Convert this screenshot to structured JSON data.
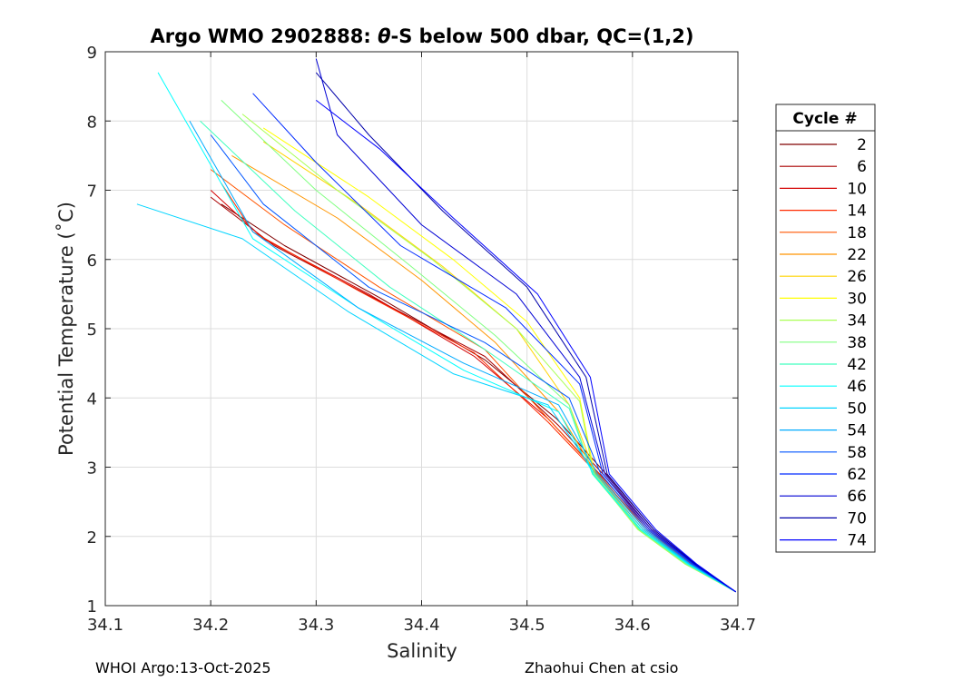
{
  "chart_data": {
    "type": "line",
    "title_prefix": "Argo WMO 2902888: ",
    "title_symbol": "θ",
    "title_suffix": "-S below 500 dbar,  QC=(1,2)",
    "xlabel": "Salinity",
    "ylabel": "Potential Temperature (˚C)",
    "xlim": [
      34.1,
      34.7
    ],
    "ylim": [
      1,
      9
    ],
    "xticks": [
      "34.1",
      "34.2",
      "34.3",
      "34.4",
      "34.5",
      "34.6",
      "34.7"
    ],
    "yticks": [
      "1",
      "2",
      "3",
      "4",
      "5",
      "6",
      "7",
      "8",
      "9"
    ],
    "grid": true,
    "legend": {
      "title": "Cycle #",
      "position": "right",
      "entries": [
        {
          "label": "2",
          "color": "#800000"
        },
        {
          "label": "6",
          "color": "#aa0000"
        },
        {
          "label": "10",
          "color": "#d40000"
        },
        {
          "label": "14",
          "color": "#ff2b00"
        },
        {
          "label": "18",
          "color": "#ff5500"
        },
        {
          "label": "22",
          "color": "#ff9500"
        },
        {
          "label": "26",
          "color": "#ffd400"
        },
        {
          "label": "30",
          "color": "#ffff00"
        },
        {
          "label": "34",
          "color": "#aaff55"
        },
        {
          "label": "38",
          "color": "#80ff80"
        },
        {
          "label": "42",
          "color": "#40ffbf"
        },
        {
          "label": "46",
          "color": "#00ffff"
        },
        {
          "label": "50",
          "color": "#00d4ff"
        },
        {
          "label": "54",
          "color": "#00aaff"
        },
        {
          "label": "58",
          "color": "#0055ff"
        },
        {
          "label": "62",
          "color": "#002bff"
        },
        {
          "label": "66",
          "color": "#0000d4"
        },
        {
          "label": "70",
          "color": "#0000aa"
        },
        {
          "label": "74",
          "color": "#0000ff"
        }
      ]
    },
    "series": [
      {
        "name": "2",
        "color": "#800000",
        "s": [
          34.698,
          34.66,
          34.62,
          34.578,
          34.528,
          34.46,
          34.36,
          34.27,
          34.21
        ],
        "t": [
          1.2,
          1.6,
          2.1,
          2.85,
          3.7,
          4.55,
          5.45,
          6.2,
          6.8
        ]
      },
      {
        "name": "6",
        "color": "#aa0000",
        "s": [
          34.698,
          34.658,
          34.618,
          34.575,
          34.53,
          34.46,
          34.36,
          34.26,
          34.2
        ],
        "t": [
          1.2,
          1.6,
          2.1,
          2.85,
          3.6,
          4.6,
          5.4,
          6.2,
          6.9
        ]
      },
      {
        "name": "10",
        "color": "#d40000",
        "s": [
          34.698,
          34.656,
          34.616,
          34.572,
          34.52,
          34.45,
          34.35,
          34.25,
          34.2
        ],
        "t": [
          1.2,
          1.6,
          2.1,
          2.85,
          3.7,
          4.6,
          5.5,
          6.3,
          7.0
        ]
      },
      {
        "name": "14",
        "color": "#ff2b00",
        "s": [
          34.698,
          34.655,
          34.614,
          34.57,
          34.52,
          34.45,
          34.34,
          34.24,
          34.21
        ],
        "t": [
          1.2,
          1.6,
          2.1,
          2.85,
          3.65,
          4.65,
          5.55,
          6.4,
          7.1
        ]
      },
      {
        "name": "18",
        "color": "#ff5500",
        "s": [
          34.698,
          34.654,
          34.612,
          34.568,
          34.52,
          34.46,
          34.36,
          34.27,
          34.2
        ],
        "t": [
          1.2,
          1.6,
          2.1,
          2.9,
          3.7,
          4.7,
          5.6,
          6.5,
          7.3
        ]
      },
      {
        "name": "22",
        "color": "#ff9500",
        "s": [
          34.698,
          34.653,
          34.61,
          34.566,
          34.53,
          34.47,
          34.4,
          34.32,
          34.22
        ],
        "t": [
          1.2,
          1.6,
          2.1,
          2.9,
          3.8,
          4.8,
          5.7,
          6.6,
          7.5
        ]
      },
      {
        "name": "26",
        "color": "#ffd400",
        "s": [
          34.698,
          34.652,
          34.608,
          34.565,
          34.54,
          34.49,
          34.42,
          34.34,
          34.25
        ],
        "t": [
          1.2,
          1.6,
          2.1,
          2.9,
          3.9,
          5.0,
          5.9,
          6.8,
          7.7
        ]
      },
      {
        "name": "30",
        "color": "#ffff00",
        "s": [
          34.698,
          34.651,
          34.606,
          34.564,
          34.55,
          34.5,
          34.43,
          34.35,
          34.25
        ],
        "t": [
          1.2,
          1.6,
          2.1,
          2.9,
          4.0,
          5.1,
          6.0,
          6.9,
          7.9
        ]
      },
      {
        "name": "34",
        "color": "#aaff55",
        "s": [
          34.698,
          34.65,
          34.605,
          34.563,
          34.55,
          34.49,
          34.41,
          34.32,
          34.23
        ],
        "t": [
          1.2,
          1.6,
          2.1,
          2.9,
          3.95,
          5.0,
          6.0,
          7.0,
          8.1
        ]
      },
      {
        "name": "38",
        "color": "#80ff80",
        "s": [
          34.698,
          34.651,
          34.606,
          34.562,
          34.54,
          34.47,
          34.39,
          34.3,
          34.21
        ],
        "t": [
          1.2,
          1.6,
          2.1,
          2.9,
          3.9,
          4.9,
          5.9,
          7.0,
          8.3
        ]
      },
      {
        "name": "42",
        "color": "#40ffbf",
        "s": [
          34.698,
          34.652,
          34.607,
          34.562,
          34.54,
          34.46,
          34.37,
          34.28,
          34.19
        ],
        "t": [
          1.2,
          1.6,
          2.1,
          2.9,
          3.85,
          4.7,
          5.6,
          6.7,
          8.0
        ]
      },
      {
        "name": "46",
        "color": "#00ffff",
        "s": [
          34.698,
          34.653,
          34.608,
          34.563,
          34.53,
          34.44,
          34.34,
          34.24,
          34.15
        ],
        "t": [
          1.2,
          1.6,
          2.1,
          2.9,
          3.8,
          4.4,
          5.3,
          6.3,
          8.7
        ]
      },
      {
        "name": "50",
        "color": "#00d4ff",
        "s": [
          34.698,
          34.654,
          34.61,
          34.565,
          34.52,
          34.43,
          34.33,
          34.23,
          34.13
        ],
        "t": [
          1.2,
          1.6,
          2.1,
          2.9,
          3.9,
          4.35,
          5.25,
          6.3,
          6.8
        ]
      },
      {
        "name": "54",
        "color": "#00aaff",
        "s": [
          34.698,
          34.655,
          34.612,
          34.567,
          34.53,
          34.44,
          34.34,
          34.24,
          34.18
        ],
        "t": [
          1.2,
          1.6,
          2.1,
          2.9,
          3.9,
          4.5,
          5.3,
          6.4,
          8.0
        ]
      },
      {
        "name": "58",
        "color": "#0055ff",
        "s": [
          34.698,
          34.657,
          34.614,
          34.57,
          34.54,
          34.46,
          34.35,
          34.25,
          34.2
        ],
        "t": [
          1.2,
          1.6,
          2.1,
          2.9,
          4.0,
          4.8,
          5.6,
          6.8,
          7.8
        ]
      },
      {
        "name": "62",
        "color": "#002bff",
        "s": [
          34.698,
          34.658,
          34.616,
          34.572,
          34.55,
          34.48,
          34.38,
          34.3,
          34.24
        ],
        "t": [
          1.2,
          1.6,
          2.1,
          2.9,
          4.2,
          5.3,
          6.2,
          7.4,
          8.4
        ]
      },
      {
        "name": "66",
        "color": "#0000d4",
        "s": [
          34.698,
          34.659,
          34.618,
          34.574,
          34.55,
          34.49,
          34.4,
          34.32,
          34.3
        ],
        "t": [
          1.2,
          1.6,
          2.1,
          2.9,
          4.3,
          5.5,
          6.5,
          7.8,
          8.9
        ]
      },
      {
        "name": "70",
        "color": "#0000aa",
        "s": [
          34.698,
          34.66,
          34.62,
          34.576,
          34.556,
          34.5,
          34.42,
          34.35,
          34.3
        ],
        "t": [
          1.2,
          1.6,
          2.1,
          2.9,
          4.3,
          5.6,
          6.7,
          7.8,
          8.7
        ]
      },
      {
        "name": "74",
        "color": "#0000ff",
        "s": [
          34.698,
          34.661,
          34.622,
          34.578,
          34.56,
          34.51,
          34.43,
          34.36,
          34.3
        ],
        "t": [
          1.2,
          1.6,
          2.1,
          2.9,
          4.3,
          5.5,
          6.6,
          7.6,
          8.3
        ]
      }
    ]
  },
  "footer": {
    "left": "WHOI Argo:13-Oct-2025",
    "right": "Zhaohui Chen at csio"
  }
}
